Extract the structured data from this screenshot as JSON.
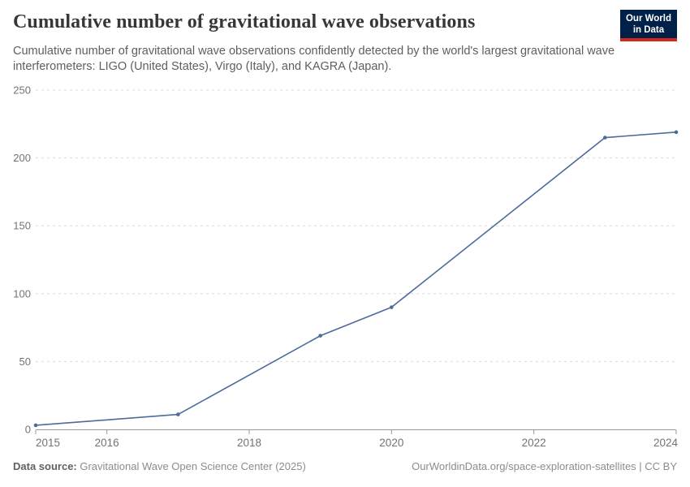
{
  "header": {
    "title": "Cumulative number of gravitational wave observations",
    "subtitle": "Cumulative number of gravitational wave observations confidently detected by the world's largest gravitational wave interferometers: LIGO (United States), Virgo (Italy), and KAGRA (Japan)."
  },
  "logo": {
    "line1": "Our World",
    "line2": "in Data",
    "bg_color": "#002147",
    "accent_color": "#d02a1d"
  },
  "chart_data": {
    "type": "line",
    "title": "Cumulative number of gravitational wave observations",
    "series": [
      {
        "name": "Cumulative gravitational wave observations",
        "x": [
          2015,
          2017,
          2019,
          2020,
          2023,
          2024
        ],
        "values": [
          3,
          11,
          69,
          90,
          215,
          219
        ]
      }
    ],
    "xlabel": "",
    "ylabel": "",
    "xlim": [
      2015,
      2024
    ],
    "ylim": [
      0,
      250
    ],
    "yticks": [
      0,
      50,
      100,
      150,
      200,
      250
    ],
    "xticks": [
      2015,
      2016,
      2018,
      2020,
      2022,
      2024
    ],
    "grid": "horizontal-dashed",
    "legend": "none",
    "line_color": "#4c6a9c",
    "grid_color": "#dadada",
    "axis_color": "#999999",
    "tick_label_color": "#737373",
    "marker": "circle"
  },
  "footer": {
    "source_label": "Data source:",
    "source_value": " Gravitational Wave Open Science Center (2025)",
    "credit": "OurWorldinData.org/space-exploration-satellites | CC BY"
  }
}
